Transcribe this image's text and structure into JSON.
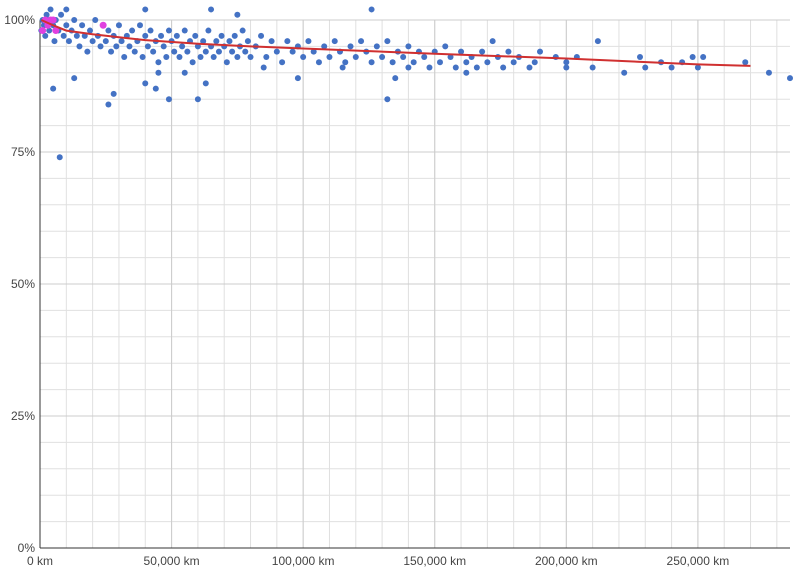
{
  "chart_data": {
    "type": "scatter",
    "title": "",
    "xlabel": "",
    "ylabel": "",
    "xlim": [
      0,
      285000
    ],
    "ylim": [
      0,
      100
    ],
    "grid": true,
    "legend": "none",
    "x_ticks": [
      0,
      50000,
      100000,
      150000,
      200000,
      250000
    ],
    "x_tick_labels": [
      "0 km",
      "50,000 km",
      "100,000 km",
      "150,000 km",
      "200,000 km",
      "250,000 km"
    ],
    "y_ticks": [
      0,
      25,
      50,
      75,
      100
    ],
    "y_tick_labels": [
      "0%",
      "25%",
      "50%",
      "75%",
      "100%"
    ],
    "colors": {
      "points": "#4472c4",
      "highlight": "#e040e0",
      "trend": "#d03030",
      "grid": "#e0e0e0",
      "axis": "#333333"
    },
    "series": [
      {
        "kind": "scatter",
        "points": [
          [
            500,
            98
          ],
          [
            1000,
            100
          ],
          [
            1500,
            99
          ],
          [
            2000,
            97
          ],
          [
            2500,
            101
          ],
          [
            3000,
            100
          ],
          [
            3500,
            98
          ],
          [
            4000,
            102
          ],
          [
            5000,
            99
          ],
          [
            5500,
            96
          ],
          [
            6000,
            100
          ],
          [
            7000,
            98
          ],
          [
            8000,
            101
          ],
          [
            9000,
            97
          ],
          [
            10000,
            99
          ],
          [
            11000,
            96
          ],
          [
            12000,
            98
          ],
          [
            13000,
            100
          ],
          [
            14000,
            97
          ],
          [
            15000,
            95
          ],
          [
            16000,
            99
          ],
          [
            17000,
            97
          ],
          [
            18000,
            94
          ],
          [
            19000,
            98
          ],
          [
            20000,
            96
          ],
          [
            21000,
            100
          ],
          [
            22000,
            97
          ],
          [
            23000,
            95
          ],
          [
            24000,
            99
          ],
          [
            25000,
            96
          ],
          [
            26000,
            98
          ],
          [
            27000,
            94
          ],
          [
            28000,
            97
          ],
          [
            29000,
            95
          ],
          [
            30000,
            99
          ],
          [
            31000,
            96
          ],
          [
            32000,
            93
          ],
          [
            33000,
            97
          ],
          [
            34000,
            95
          ],
          [
            35000,
            98
          ],
          [
            36000,
            94
          ],
          [
            37000,
            96
          ],
          [
            38000,
            99
          ],
          [
            39000,
            93
          ],
          [
            40000,
            97
          ],
          [
            41000,
            95
          ],
          [
            42000,
            98
          ],
          [
            43000,
            94
          ],
          [
            44000,
            96
          ],
          [
            45000,
            92
          ],
          [
            46000,
            97
          ],
          [
            47000,
            95
          ],
          [
            48000,
            93
          ],
          [
            49000,
            98
          ],
          [
            50000,
            96
          ],
          [
            51000,
            94
          ],
          [
            52000,
            97
          ],
          [
            53000,
            93
          ],
          [
            54000,
            95
          ],
          [
            55000,
            98
          ],
          [
            56000,
            94
          ],
          [
            57000,
            96
          ],
          [
            58000,
            92
          ],
          [
            59000,
            97
          ],
          [
            60000,
            95
          ],
          [
            61000,
            93
          ],
          [
            62000,
            96
          ],
          [
            63000,
            94
          ],
          [
            64000,
            98
          ],
          [
            65000,
            95
          ],
          [
            66000,
            93
          ],
          [
            67000,
            96
          ],
          [
            68000,
            94
          ],
          [
            69000,
            97
          ],
          [
            70000,
            95
          ],
          [
            71000,
            92
          ],
          [
            72000,
            96
          ],
          [
            73000,
            94
          ],
          [
            74000,
            97
          ],
          [
            75000,
            93
          ],
          [
            76000,
            95
          ],
          [
            77000,
            98
          ],
          [
            78000,
            94
          ],
          [
            79000,
            96
          ],
          [
            80000,
            93
          ],
          [
            82000,
            95
          ],
          [
            84000,
            97
          ],
          [
            86000,
            93
          ],
          [
            88000,
            96
          ],
          [
            90000,
            94
          ],
          [
            92000,
            92
          ],
          [
            94000,
            96
          ],
          [
            96000,
            94
          ],
          [
            98000,
            95
          ],
          [
            100000,
            93
          ],
          [
            102000,
            96
          ],
          [
            104000,
            94
          ],
          [
            106000,
            92
          ],
          [
            108000,
            95
          ],
          [
            110000,
            93
          ],
          [
            112000,
            96
          ],
          [
            114000,
            94
          ],
          [
            116000,
            92
          ],
          [
            118000,
            95
          ],
          [
            120000,
            93
          ],
          [
            122000,
            96
          ],
          [
            124000,
            94
          ],
          [
            126000,
            92
          ],
          [
            128000,
            95
          ],
          [
            130000,
            93
          ],
          [
            132000,
            96
          ],
          [
            134000,
            92
          ],
          [
            136000,
            94
          ],
          [
            138000,
            93
          ],
          [
            140000,
            95
          ],
          [
            142000,
            92
          ],
          [
            144000,
            94
          ],
          [
            146000,
            93
          ],
          [
            148000,
            91
          ],
          [
            150000,
            94
          ],
          [
            152000,
            92
          ],
          [
            154000,
            95
          ],
          [
            156000,
            93
          ],
          [
            158000,
            91
          ],
          [
            160000,
            94
          ],
          [
            162000,
            92
          ],
          [
            164000,
            93
          ],
          [
            166000,
            91
          ],
          [
            168000,
            94
          ],
          [
            170000,
            92
          ],
          [
            172000,
            96
          ],
          [
            174000,
            93
          ],
          [
            176000,
            91
          ],
          [
            178000,
            94
          ],
          [
            180000,
            92
          ],
          [
            182000,
            93
          ],
          [
            186000,
            91
          ],
          [
            188000,
            92
          ],
          [
            190000,
            94
          ],
          [
            196000,
            93
          ],
          [
            200000,
            92
          ],
          [
            204000,
            93
          ],
          [
            210000,
            91
          ],
          [
            212000,
            96
          ],
          [
            222000,
            90
          ],
          [
            228000,
            93
          ],
          [
            230000,
            91
          ],
          [
            236000,
            92
          ],
          [
            240000,
            91
          ],
          [
            244000,
            92
          ],
          [
            248000,
            93
          ],
          [
            250000,
            91
          ],
          [
            252000,
            93
          ],
          [
            268000,
            92
          ],
          [
            277000,
            90
          ],
          [
            285000,
            89
          ],
          [
            7500,
            74
          ],
          [
            26000,
            84
          ],
          [
            28000,
            86
          ],
          [
            5000,
            87
          ],
          [
            13000,
            89
          ],
          [
            40000,
            88
          ],
          [
            44000,
            87
          ],
          [
            49000,
            85
          ],
          [
            60000,
            85
          ],
          [
            63000,
            88
          ],
          [
            98000,
            89
          ],
          [
            132000,
            85
          ],
          [
            126000,
            102
          ],
          [
            75000,
            101
          ],
          [
            65000,
            102
          ],
          [
            40000,
            102
          ],
          [
            10000,
            102
          ],
          [
            135000,
            89
          ],
          [
            162000,
            90
          ],
          [
            200000,
            91
          ],
          [
            45000,
            90
          ],
          [
            55000,
            90
          ],
          [
            85000,
            91
          ],
          [
            115000,
            91
          ],
          [
            140000,
            91
          ]
        ]
      },
      {
        "kind": "highlight",
        "points": [
          [
            1000,
            98
          ],
          [
            2000,
            100
          ],
          [
            3000,
            99
          ],
          [
            4000,
            100
          ],
          [
            5000,
            100
          ],
          [
            6000,
            98
          ],
          [
            24000,
            99
          ]
        ]
      },
      {
        "kind": "trend",
        "points": [
          [
            500,
            100
          ],
          [
            5000,
            99
          ],
          [
            10000,
            98
          ],
          [
            20000,
            97.3
          ],
          [
            40000,
            96.2
          ],
          [
            60000,
            95.5
          ],
          [
            80000,
            95
          ],
          [
            100000,
            94.6
          ],
          [
            150000,
            93.6
          ],
          [
            200000,
            92.7
          ],
          [
            250000,
            91.6
          ],
          [
            270000,
            91.3
          ]
        ]
      }
    ]
  }
}
